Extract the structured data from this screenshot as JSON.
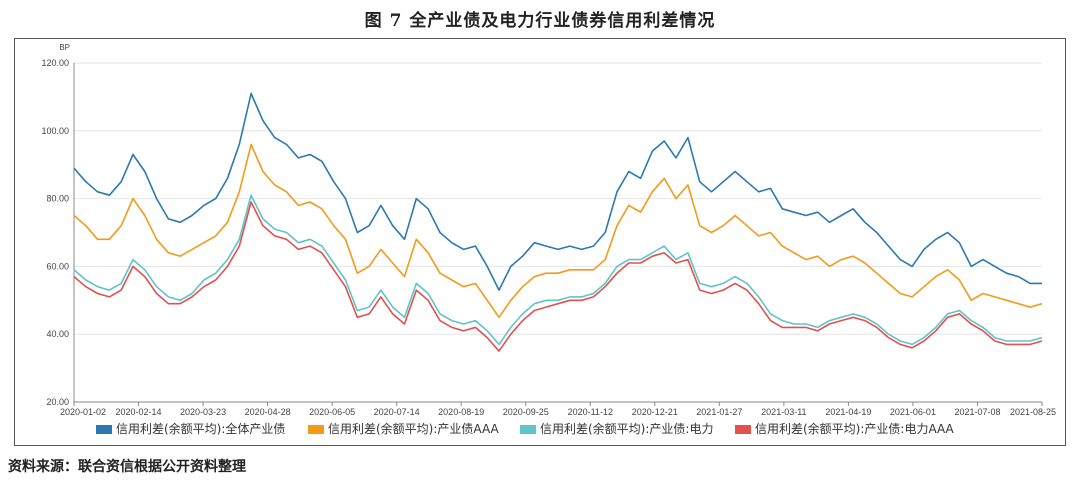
{
  "title": "图 7   全产业债及电力行业债券信用利差情况",
  "source": "资料来源：联合资信根据公开资料整理",
  "chart_data": {
    "type": "line",
    "ylabel": "BP",
    "ylim": [
      20,
      120
    ],
    "yticks": [
      "120.00",
      "100.00",
      "80.00",
      "60.00",
      "40.00",
      "20.00"
    ],
    "xticks": [
      "2020-01-02",
      "2020-02-14",
      "2020-03-23",
      "2020-04-28",
      "2020-06-05",
      "2020-07-14",
      "2020-08-19",
      "2020-09-25",
      "2020-11-12",
      "2020-12-21",
      "2021-01-27",
      "2021-03-11",
      "2021-04-19",
      "2021-06-01",
      "2021-07-08",
      "2021-08-25"
    ],
    "grid": true,
    "legend_position": "bottom",
    "series": [
      {
        "name": "信用利差(余额平均):全体产业债",
        "color": "#2a7ab0",
        "values": [
          89,
          85,
          82,
          81,
          85,
          93,
          88,
          80,
          74,
          73,
          75,
          78,
          80,
          86,
          96,
          111,
          103,
          98,
          96,
          92,
          93,
          91,
          85,
          80,
          70,
          72,
          78,
          72,
          68,
          80,
          77,
          70,
          67,
          65,
          66,
          60,
          53,
          60,
          63,
          67,
          66,
          65,
          66,
          65,
          66,
          70,
          82,
          88,
          86,
          94,
          97,
          92,
          98,
          85,
          82,
          85,
          88,
          85,
          82,
          83,
          77,
          76,
          75,
          76,
          73,
          75,
          77,
          73,
          70,
          66,
          62,
          60,
          65,
          68,
          70,
          67,
          60,
          62,
          60,
          58,
          57,
          55,
          55
        ]
      },
      {
        "name": "信用利差(余额平均):产业债AAA",
        "color": "#f39a1a",
        "values": [
          75,
          72,
          68,
          68,
          72,
          80,
          75,
          68,
          64,
          63,
          65,
          67,
          69,
          73,
          82,
          96,
          88,
          84,
          82,
          78,
          79,
          77,
          72,
          68,
          58,
          60,
          65,
          61,
          57,
          68,
          64,
          58,
          56,
          54,
          55,
          50,
          45,
          50,
          54,
          57,
          58,
          58,
          59,
          59,
          59,
          62,
          72,
          78,
          76,
          82,
          86,
          80,
          84,
          72,
          70,
          72,
          75,
          72,
          69,
          70,
          66,
          64,
          62,
          63,
          60,
          62,
          63,
          61,
          58,
          55,
          52,
          51,
          54,
          57,
          59,
          56,
          50,
          52,
          51,
          50,
          49,
          48,
          49
        ]
      },
      {
        "name": "信用利差(余额平均):产业债:电力",
        "color": "#5ec4c9",
        "values": [
          59,
          56,
          54,
          53,
          55,
          62,
          59,
          54,
          51,
          50,
          52,
          56,
          58,
          62,
          68,
          81,
          74,
          71,
          70,
          67,
          68,
          66,
          61,
          56,
          47,
          48,
          53,
          48,
          45,
          55,
          52,
          46,
          44,
          43,
          44,
          41,
          37,
          42,
          46,
          49,
          50,
          50,
          51,
          51,
          52,
          55,
          60,
          62,
          62,
          64,
          66,
          62,
          64,
          55,
          54,
          55,
          57,
          55,
          51,
          46,
          44,
          43,
          43,
          42,
          44,
          45,
          46,
          45,
          43,
          40,
          38,
          37,
          39,
          42,
          46,
          47,
          44,
          42,
          39,
          38,
          38,
          38,
          39
        ]
      },
      {
        "name": "信用利差(余额平均):产业债:电力AAA",
        "color": "#e25050",
        "values": [
          57,
          54,
          52,
          51,
          53,
          60,
          57,
          52,
          49,
          49,
          51,
          54,
          56,
          60,
          66,
          79,
          72,
          69,
          68,
          65,
          66,
          64,
          59,
          54,
          45,
          46,
          51,
          46,
          43,
          53,
          50,
          44,
          42,
          41,
          42,
          39,
          35,
          40,
          44,
          47,
          48,
          49,
          50,
          50,
          51,
          54,
          58,
          61,
          61,
          63,
          64,
          61,
          62,
          53,
          52,
          53,
          55,
          53,
          49,
          44,
          42,
          42,
          42,
          41,
          43,
          44,
          45,
          44,
          42,
          39,
          37,
          36,
          38,
          41,
          45,
          46,
          43,
          41,
          38,
          37,
          37,
          37,
          38
        ]
      }
    ]
  }
}
